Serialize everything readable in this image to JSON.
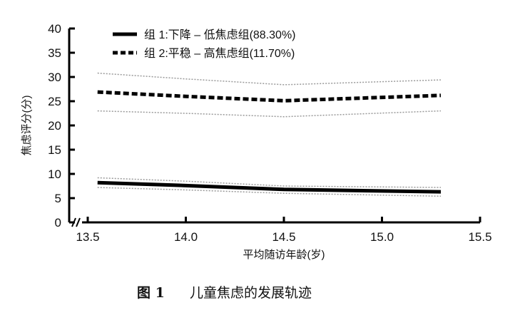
{
  "chart_data": {
    "type": "line",
    "title": "",
    "xlabel": "平均随访年龄(岁)",
    "ylabel": "焦虑评分(分)",
    "xlim": [
      13.5,
      15.5
    ],
    "ylim": [
      0,
      40
    ],
    "xticks": [
      "13.5",
      "14.0",
      "14.5",
      "15.0",
      "15.5"
    ],
    "yticks": [
      "0",
      "5",
      "10",
      "15",
      "20",
      "25",
      "30",
      "35",
      "40"
    ],
    "grid": false,
    "legend_position": "top-left",
    "x": [
      13.55,
      14.0,
      14.5,
      15.3
    ],
    "series": [
      {
        "name": "组 1:下降 – 低焦虑组(88.30%)",
        "style": "solid",
        "values": [
          8.2,
          7.6,
          6.8,
          6.3
        ],
        "ci_upper": [
          9.2,
          8.5,
          7.5,
          7.2
        ],
        "ci_lower": [
          7.2,
          6.7,
          6.0,
          5.4
        ]
      },
      {
        "name": "组 2:平稳 – 高焦虑组(11.70%)",
        "style": "dashed",
        "values": [
          26.9,
          26.0,
          25.1,
          26.2
        ],
        "ci_upper": [
          30.8,
          29.6,
          28.4,
          29.4
        ],
        "ci_lower": [
          23.0,
          22.5,
          21.8,
          23.0
        ]
      }
    ],
    "caption_num": "图 1",
    "caption_text": "儿童焦虑的发展轨迹"
  }
}
